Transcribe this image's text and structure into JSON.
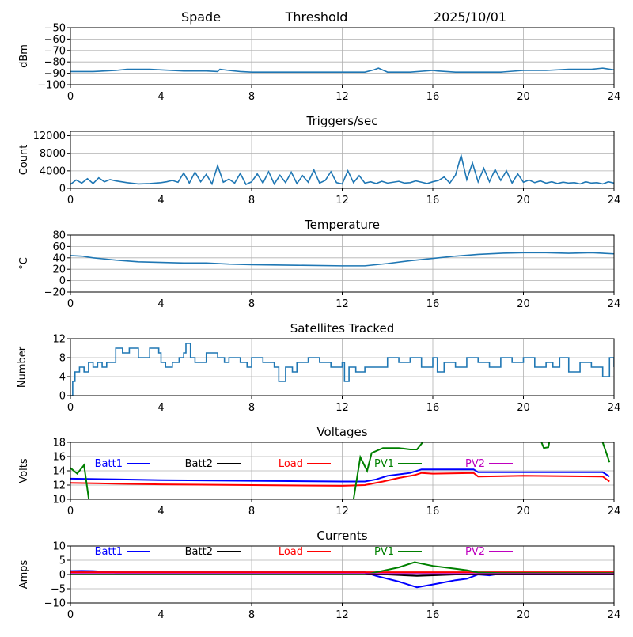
{
  "header": {
    "left": "Spade",
    "center": "Threshold",
    "right": "2025/10/01"
  },
  "chart_data": [
    {
      "type": "line",
      "title": "",
      "ylabel": "dBm",
      "xlim": [
        0,
        24
      ],
      "ylim": [
        -100,
        -50
      ],
      "xticks": [
        0,
        4,
        8,
        12,
        16,
        20,
        24
      ],
      "yticks": [
        -100,
        -90,
        -80,
        -70,
        -60,
        -50
      ],
      "ytick_labels": [
        "−100",
        "−90",
        "−80",
        "−70",
        "−60",
        "−50"
      ],
      "grid": true,
      "series": [
        {
          "color": "#1f77b4",
          "x": [
            0,
            1,
            2,
            2.5,
            3.5,
            4,
            5,
            6,
            6.5,
            6.6,
            7,
            7.5,
            8,
            9,
            10,
            12,
            13,
            13.4,
            13.6,
            14,
            15,
            16,
            16.2,
            17,
            18,
            19,
            20,
            21,
            22,
            23,
            23.5,
            24
          ],
          "y": [
            -88.5,
            -88.5,
            -87.5,
            -86.5,
            -86.5,
            -87,
            -88,
            -88,
            -88.5,
            -86.5,
            -87.5,
            -88.5,
            -89,
            -89,
            -89,
            -89,
            -89,
            -87,
            -85.5,
            -89,
            -89,
            -87.5,
            -88,
            -89,
            -89,
            -89,
            -87.5,
            -87.5,
            -86.5,
            -86.5,
            -85.5,
            -87
          ]
        }
      ]
    },
    {
      "type": "line",
      "title": "Triggers/sec",
      "ylabel": "Count",
      "xlim": [
        0,
        24
      ],
      "ylim": [
        0,
        13000
      ],
      "xticks": [
        0,
        4,
        8,
        12,
        16,
        20,
        24
      ],
      "yticks": [
        0,
        4000,
        8000,
        12000
      ],
      "ytick_labels": [
        "0",
        "4000",
        "8000",
        "12000"
      ],
      "grid": true,
      "series": [
        {
          "color": "#1f77b4",
          "x": [
            0,
            0.25,
            0.5,
            0.75,
            1,
            1.25,
            1.5,
            1.75,
            2,
            2.5,
            3,
            3.5,
            4,
            4.25,
            4.5,
            4.75,
            5,
            5.25,
            5.5,
            5.75,
            6,
            6.25,
            6.5,
            6.75,
            7,
            7.25,
            7.5,
            7.75,
            8,
            8.25,
            8.5,
            8.75,
            9,
            9.25,
            9.5,
            9.75,
            10,
            10.25,
            10.5,
            10.75,
            11,
            11.25,
            11.5,
            11.75,
            12,
            12.25,
            12.5,
            12.75,
            13,
            13.25,
            13.5,
            13.75,
            14,
            14.25,
            14.5,
            14.75,
            15,
            15.25,
            15.5,
            15.75,
            16,
            16.25,
            16.5,
            16.75,
            17,
            17.25,
            17.5,
            17.75,
            18,
            18.25,
            18.5,
            18.75,
            19,
            19.25,
            19.5,
            19.75,
            20,
            20.25,
            20.5,
            20.75,
            21,
            21.25,
            21.5,
            21.75,
            22,
            22.25,
            22.5,
            22.75,
            23,
            23.25,
            23.5,
            23.75,
            24
          ],
          "y": [
            900,
            1900,
            1200,
            2200,
            1100,
            2400,
            1500,
            2000,
            1700,
            1300,
            1000,
            1100,
            1300,
            1500,
            1800,
            1400,
            3500,
            1200,
            3700,
            1500,
            3200,
            1000,
            5200,
            1400,
            2100,
            1200,
            3400,
            900,
            1500,
            3300,
            1200,
            3800,
            1000,
            3000,
            1300,
            3700,
            1100,
            2900,
            1400,
            4200,
            1200,
            1800,
            3800,
            1300,
            1000,
            4000,
            1300,
            2900,
            1200,
            1500,
            1100,
            1600,
            1200,
            1400,
            1600,
            1200,
            1300,
            1700,
            1400,
            1100,
            1500,
            1800,
            2600,
            1200,
            3000,
            7500,
            2000,
            5800,
            1500,
            4600,
            1500,
            4300,
            1800,
            4000,
            1200,
            3300,
            1400,
            1900,
            1300,
            1700,
            1200,
            1500,
            1100,
            1400,
            1200,
            1300,
            1000,
            1500,
            1200,
            1300,
            1000,
            1500,
            1200
          ]
        }
      ]
    },
    {
      "type": "line",
      "title": "Temperature",
      "ylabel": "°C",
      "xlim": [
        0,
        24
      ],
      "ylim": [
        -20,
        80
      ],
      "xticks": [
        0,
        4,
        8,
        12,
        16,
        20,
        24
      ],
      "yticks": [
        -20,
        0,
        20,
        40,
        60,
        80
      ],
      "ytick_labels": [
        "−20",
        "0",
        "20",
        "40",
        "60",
        "80"
      ],
      "grid": true,
      "series": [
        {
          "color": "#1f77b4",
          "x": [
            0,
            0.5,
            1,
            2,
            3,
            4,
            5,
            6,
            7,
            8,
            10,
            12,
            13,
            14,
            15,
            16,
            17,
            18,
            19,
            20,
            21,
            22,
            23,
            24
          ],
          "y": [
            44,
            43,
            40,
            36,
            33,
            32,
            31,
            31,
            29,
            28,
            27,
            26,
            26,
            30,
            35,
            39,
            43,
            46,
            48,
            49,
            49,
            48,
            49,
            47
          ]
        }
      ]
    },
    {
      "type": "line",
      "title": "Satellites Tracked",
      "ylabel": "Number",
      "xlim": [
        0,
        24
      ],
      "ylim": [
        0,
        12
      ],
      "xticks": [
        0,
        4,
        8,
        12,
        16,
        20,
        24
      ],
      "yticks": [
        0,
        4,
        8,
        12
      ],
      "ytick_labels": [
        "0",
        "4",
        "8",
        "12"
      ],
      "grid": true,
      "step": true,
      "series": [
        {
          "color": "#1f77b4",
          "x": [
            0,
            0.1,
            0.2,
            0.4,
            0.6,
            0.8,
            1,
            1.2,
            1.4,
            1.6,
            1.8,
            2,
            2.3,
            2.6,
            3,
            3.5,
            3.9,
            4,
            4.2,
            4.5,
            4.8,
            5,
            5.1,
            5.3,
            5.5,
            6,
            6.5,
            6.8,
            7,
            7.5,
            7.8,
            8,
            8.5,
            9,
            9.2,
            9.5,
            9.8,
            10,
            10.5,
            11,
            11.5,
            12,
            12.1,
            12.3,
            12.6,
            13,
            13.5,
            14,
            14.5,
            15,
            15.5,
            16,
            16.2,
            16.5,
            17,
            17.5,
            18,
            18.5,
            19,
            19.5,
            20,
            20.5,
            21,
            21.3,
            21.6,
            22,
            22.5,
            23,
            23.5,
            23.8,
            24
          ],
          "y": [
            0,
            3,
            5,
            6,
            5,
            7,
            6,
            7,
            6,
            7,
            7,
            10,
            9,
            10,
            8,
            10,
            9,
            7,
            6,
            7,
            8,
            9,
            11,
            8,
            7,
            9,
            8,
            7,
            8,
            7,
            6,
            8,
            7,
            6,
            3,
            6,
            5,
            7,
            8,
            7,
            6,
            7,
            3,
            6,
            5,
            6,
            6,
            8,
            7,
            8,
            6,
            8,
            5,
            7,
            6,
            8,
            7,
            6,
            8,
            7,
            8,
            6,
            7,
            6,
            8,
            5,
            7,
            6,
            4,
            8,
            6
          ]
        }
      ]
    },
    {
      "type": "line",
      "title": "Voltages",
      "ylabel": "Volts",
      "xlim": [
        0,
        24
      ],
      "ylim": [
        10,
        18
      ],
      "xticks": [
        0,
        4,
        8,
        12,
        16,
        20,
        24
      ],
      "yticks": [
        10,
        12,
        14,
        16,
        18
      ],
      "ytick_labels": [
        "10",
        "12",
        "14",
        "16",
        "18"
      ],
      "grid": true,
      "legend": "top, inline",
      "series": [
        {
          "name": "Batt1",
          "color": "#0000ff",
          "x": [
            0,
            2,
            4,
            8,
            12,
            13,
            13.5,
            14,
            15,
            15.5,
            17.8,
            18,
            23.5,
            23.8
          ],
          "y": [
            12.9,
            12.8,
            12.7,
            12.6,
            12.5,
            12.5,
            12.8,
            13.3,
            13.7,
            14.2,
            14.2,
            13.8,
            13.8,
            13.2
          ]
        },
        {
          "name": "Batt2",
          "color": "#000000",
          "x": [],
          "y": []
        },
        {
          "name": "Load",
          "color": "#ff0000",
          "x": [
            0,
            2,
            4,
            8,
            12,
            13,
            13.8,
            14.5,
            15.2,
            15.5,
            16,
            17.8,
            18,
            20,
            23.5,
            23.8
          ],
          "y": [
            12.3,
            12.2,
            12.1,
            12.0,
            11.9,
            12.0,
            12.5,
            13.0,
            13.4,
            13.7,
            13.6,
            13.7,
            13.2,
            13.3,
            13.2,
            12.5
          ]
        },
        {
          "name": "PV1",
          "color": "#008000",
          "x": [
            0,
            0.3,
            0.6,
            0.9,
            12.4,
            12.8,
            13.1,
            13.3,
            13.8,
            14.5,
            15,
            15.3,
            15.6,
            16,
            20.7,
            20.8,
            20.9,
            21.1,
            21.2,
            23.3,
            23.5,
            23.8
          ],
          "y": [
            14.4,
            13.6,
            14.8,
            8,
            8,
            15.9,
            14,
            16.5,
            17.2,
            17.2,
            17.0,
            17.0,
            18.2,
            20,
            20,
            18,
            17.2,
            17.3,
            19,
            19,
            18,
            15.2
          ]
        },
        {
          "name": "PV2",
          "color": "#bf00bf",
          "x": [],
          "y": []
        }
      ]
    },
    {
      "type": "line",
      "title": "Currents",
      "ylabel": "Amps",
      "xlim": [
        0,
        24
      ],
      "ylim": [
        -10,
        10
      ],
      "xticks": [
        0,
        4,
        8,
        12,
        16,
        20,
        24
      ],
      "yticks": [
        -10,
        -5,
        0,
        5,
        10
      ],
      "ytick_labels": [
        "−10",
        "−5",
        "0",
        "5",
        "10"
      ],
      "grid": true,
      "legend": "top, inline",
      "series": [
        {
          "name": "Batt1",
          "color": "#0000ff",
          "x": [
            0,
            0.5,
            1,
            2,
            13,
            13.5,
            14.5,
            15.3,
            16,
            17,
            17.5,
            18,
            18.5,
            19,
            24
          ],
          "y": [
            1.2,
            1.3,
            1.2,
            0.8,
            0.8,
            -0.5,
            -2.5,
            -4.5,
            -3.5,
            -2,
            -1.5,
            0,
            -0.3,
            0.3,
            0.5
          ]
        },
        {
          "name": "Batt2",
          "color": "#000000",
          "x": [
            0,
            14,
            15.3,
            17,
            24
          ],
          "y": [
            0,
            0,
            -0.5,
            0,
            0
          ]
        },
        {
          "name": "Load",
          "color": "#ff0000",
          "x": [
            0,
            24
          ],
          "y": [
            0.8,
            0.8
          ]
        },
        {
          "name": "PV1",
          "color": "#008000",
          "x": [
            0,
            13,
            13.2,
            14.5,
            15.2,
            16,
            17,
            17.5,
            18,
            19,
            24
          ],
          "y": [
            0,
            0,
            0.3,
            2.5,
            4.3,
            3,
            2,
            1.5,
            0.7,
            0.5,
            0.5
          ]
        },
        {
          "name": "PV2",
          "color": "#bf00bf",
          "x": [
            0,
            24
          ],
          "y": [
            0.2,
            0.2
          ]
        }
      ]
    }
  ]
}
